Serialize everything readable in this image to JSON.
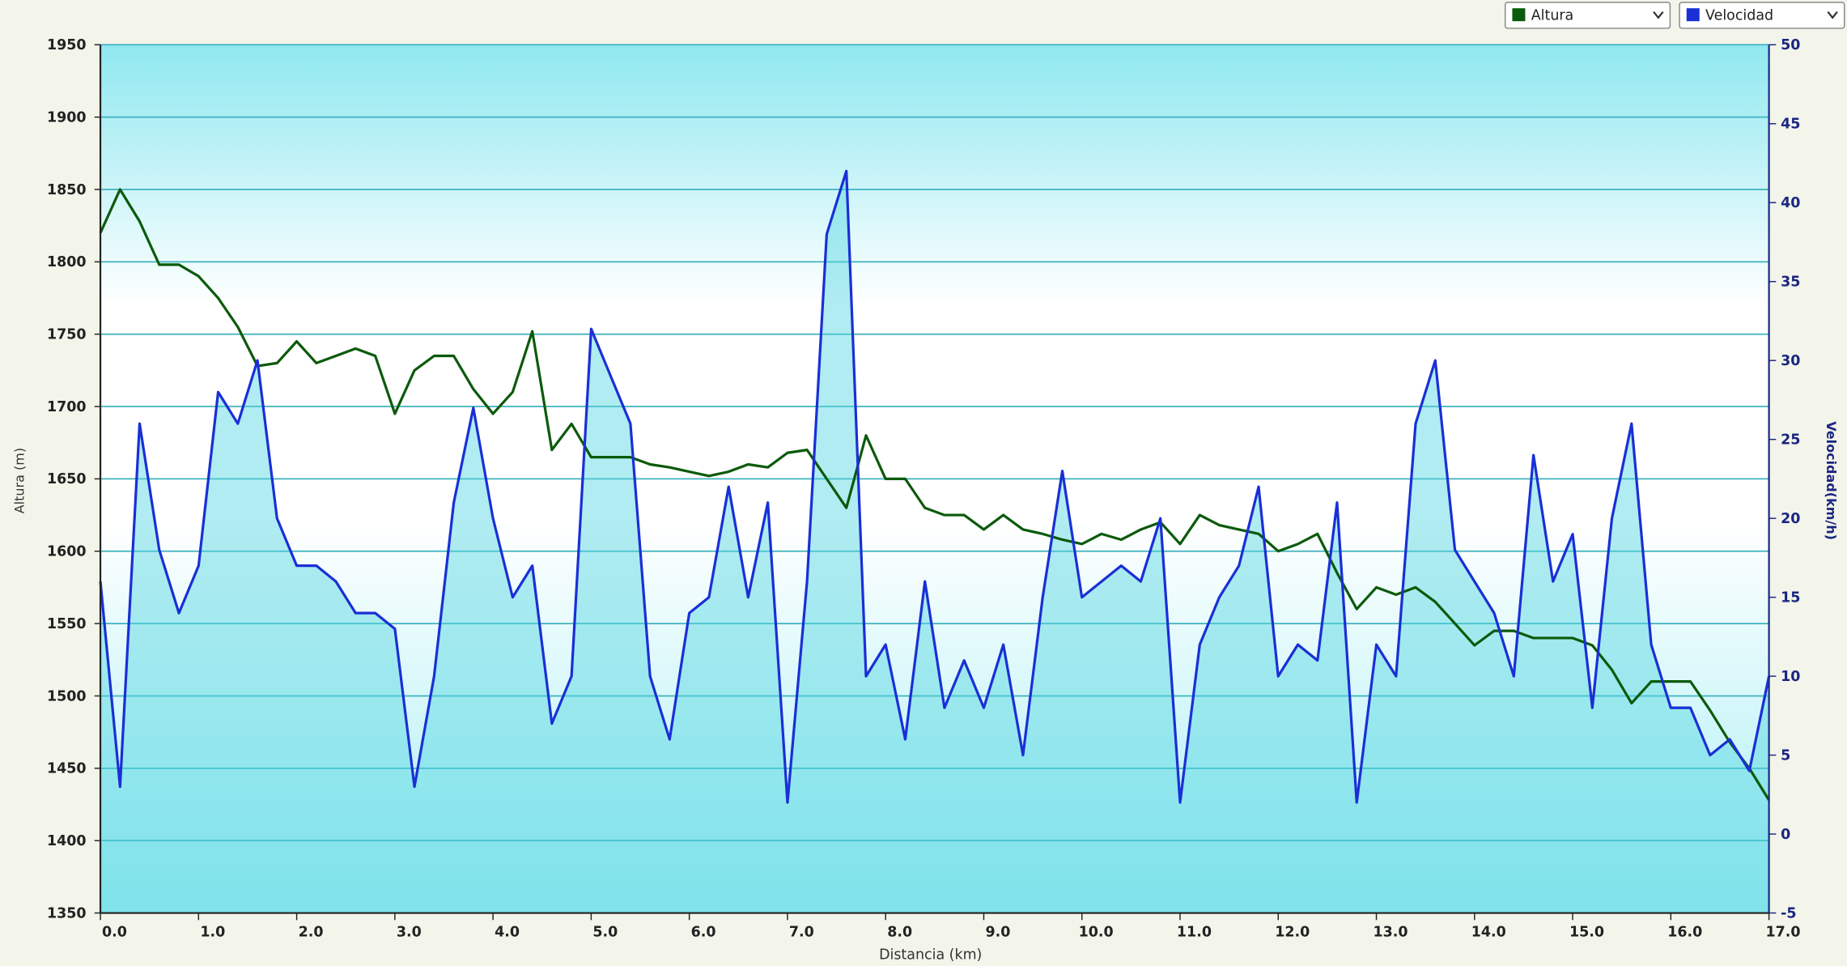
{
  "chart_data": {
    "type": "line",
    "x_label": "Distancia  (km)",
    "y_label": "Altura (m)",
    "y2_label": "Velocidad(km/h)",
    "x": [
      0,
      0.2,
      0.4,
      0.6,
      0.8,
      1,
      1.2,
      1.4,
      1.6,
      1.8,
      2,
      2.2,
      2.4,
      2.6,
      2.8,
      3,
      3.2,
      3.4,
      3.6,
      3.8,
      4,
      4.2,
      4.4,
      4.6,
      4.8,
      5,
      5.2,
      5.4,
      5.6,
      5.8,
      6,
      6.2,
      6.4,
      6.6,
      6.8,
      7,
      7.2,
      7.4,
      7.6,
      7.8,
      8,
      8.2,
      8.4,
      8.6,
      8.8,
      9,
      9.2,
      9.4,
      9.6,
      9.8,
      10,
      10.2,
      10.4,
      10.6,
      10.8,
      11,
      11.2,
      11.4,
      11.6,
      11.8,
      12,
      12.2,
      12.4,
      12.6,
      12.8,
      13,
      13.2,
      13.4,
      13.6,
      13.8,
      14,
      14.2,
      14.4,
      14.6,
      14.8,
      15,
      15.2,
      15.4,
      15.6,
      15.8,
      16,
      16.2,
      16.4,
      16.6,
      16.8,
      17
    ],
    "series": [
      {
        "name": "Altura",
        "color": "#0b5a0b",
        "axis": "y",
        "values": [
          1820,
          1850,
          1828,
          1798,
          1798,
          1790,
          1775,
          1755,
          1728,
          1730,
          1745,
          1730,
          1735,
          1740,
          1735,
          1695,
          1725,
          1735,
          1735,
          1712,
          1695,
          1710,
          1752,
          1670,
          1688,
          1665,
          1665,
          1665,
          1660,
          1658,
          1655,
          1652,
          1655,
          1660,
          1658,
          1668,
          1670,
          1650,
          1630,
          1680,
          1650,
          1650,
          1630,
          1625,
          1625,
          1615,
          1625,
          1615,
          1612,
          1608,
          1605,
          1612,
          1608,
          1615,
          1620,
          1605,
          1625,
          1618,
          1615,
          1612,
          1600,
          1605,
          1612,
          1585,
          1560,
          1575,
          1570,
          1575,
          1565,
          1550,
          1535,
          1545,
          1545,
          1540,
          1540,
          1540,
          1535,
          1518,
          1495,
          1510,
          1510,
          1510,
          1490,
          1468,
          1450,
          1428
        ]
      },
      {
        "name": "Velocidad",
        "color": "#1a2fd6",
        "axis": "y2",
        "values": [
          16,
          3,
          26,
          18,
          14,
          17,
          28,
          26,
          30,
          20,
          17,
          17,
          16,
          14,
          14,
          13,
          3,
          10,
          21,
          27,
          20,
          15,
          17,
          7,
          10,
          32,
          29,
          26,
          10,
          6,
          14,
          15,
          22,
          15,
          21,
          2,
          16,
          38,
          42,
          10,
          12,
          6,
          16,
          8,
          11,
          8,
          12,
          5,
          15,
          23,
          15,
          16,
          17,
          16,
          20,
          2,
          12,
          15,
          17,
          22,
          10,
          12,
          11,
          21,
          2,
          12,
          10,
          26,
          30,
          18,
          16,
          14,
          10,
          24,
          16,
          19,
          8,
          20,
          26,
          12,
          8,
          8,
          5,
          6,
          4,
          10
        ]
      }
    ],
    "xlim": [
      0,
      17
    ],
    "xticks": [
      {
        "value": 0,
        "label": "0.0"
      },
      {
        "value": 1,
        "label": "1.0"
      },
      {
        "value": 2,
        "label": "2.0"
      },
      {
        "value": 3,
        "label": "3.0"
      },
      {
        "value": 4,
        "label": "4.0"
      },
      {
        "value": 5,
        "label": "5.0"
      },
      {
        "value": 6,
        "label": "6.0"
      },
      {
        "value": 7,
        "label": "7.0"
      },
      {
        "value": 8,
        "label": "8.0"
      },
      {
        "value": 9,
        "label": "9.0"
      },
      {
        "value": 10,
        "label": "10.0"
      },
      {
        "value": 11,
        "label": "11.0"
      },
      {
        "value": 12,
        "label": "12.0"
      },
      {
        "value": 13,
        "label": "13.0"
      },
      {
        "value": 14,
        "label": "14.0"
      },
      {
        "value": 15,
        "label": "15.0"
      },
      {
        "value": 16,
        "label": "16.0"
      },
      {
        "value": 17,
        "label": "17.0"
      }
    ],
    "ylim": [
      1350,
      1950
    ],
    "yticks": [
      1350,
      1400,
      1450,
      1500,
      1550,
      1600,
      1650,
      1700,
      1750,
      1800,
      1850,
      1900,
      1950
    ],
    "y2lim": [
      -5,
      50
    ],
    "y2ticks": [
      -5,
      0,
      5,
      10,
      15,
      20,
      25,
      30,
      35,
      40,
      45,
      50
    ],
    "grid": true,
    "legend_position": "top-right"
  }
}
